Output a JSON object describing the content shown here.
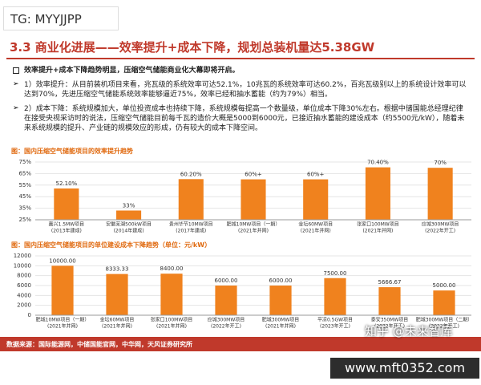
{
  "watermark": "TG: MYYJJPP",
  "header": {
    "title": "3.3 商业化进展——效率提升+成本下降，规划总装机量达5.38GW"
  },
  "bullets": [
    "效率提升+成本下降趋势明显，压缩空气储能商业化大幕即将开启。",
    "1）效率提升：从目前装机项目来看，兆瓦级的系统效率可达52.1%，10兆瓦的系统效率可达60.2%，百兆瓦级别以上的系统设计效率可以达到70%，先进压缩空气储能系统效率能够逼近75%，效率已经和抽水蓄能（约为79%）相当。",
    "2）成本下降：系统规模加大，单位投资成本也持续下降，系统规模每提高一个数量级，单位成本下降30%左右。根据中储国能总经理纪律在接受央视采访时的说法，压缩空气储能目前每千瓦的造价大概是5000到6000元，已接近抽水蓄能的建设成本（约5500元/kW），随着未来系统规模的提升、产业链的规模效应的形成，仍有较大的成本下降空间。"
  ],
  "chart_data": [
    {
      "type": "bar",
      "title": "图：国内压缩空气储能项目的效率提升趋势",
      "categories": [
        "嘉兴1.5MW项目",
        "安徽芜湖500kW项目",
        "贵州毕节10MW项目",
        "肥城10MW项目（一期）",
        "金坛60MW项目",
        "张家口100MW项目",
        "应城300MW项目"
      ],
      "category_notes": [
        "(2013年建成)",
        "(2014年建成)",
        "(2017年建成)",
        "(2021年并网)",
        "(2021年并网)",
        "(2021年并网)",
        "(2022年开工)"
      ],
      "values": [
        52.1,
        33,
        60.2,
        60,
        60,
        70.4,
        70
      ],
      "value_labels": [
        "52.10%",
        "33%",
        "60.20%",
        "60%+",
        "60%+",
        "70.40%",
        "70%"
      ],
      "color": "#f0821e",
      "ylim": [
        25,
        75
      ],
      "yticks": [
        {
          "value": 25,
          "label": "25%"
        },
        {
          "value": 35,
          "label": "35%"
        },
        {
          "value": 45,
          "label": "45%"
        },
        {
          "value": 55,
          "label": "55%"
        },
        {
          "value": 65,
          "label": "65%"
        },
        {
          "value": 75,
          "label": "75%"
        }
      ],
      "grid": true
    },
    {
      "type": "bar",
      "title": "图：国内压缩空气储能项目的单位建设成本下降趋势（单位：元/kW）",
      "categories": [
        "肥城10MW项目（一期）",
        "金坛60MW项目",
        "张家口100MW项目",
        "应城300MW项目",
        "肥城300MW项目",
        "平凉0.5GW项目",
        "泰安350MW项目",
        "肥城300MW项目（二期）"
      ],
      "category_notes": [
        "(2021年并网)",
        "(2021年并网)",
        "(2021年并网)",
        "(2022年开工)",
        "(2021年并网)",
        "(2023年开工)",
        "(2022年开工)",
        "(2022年开工)"
      ],
      "values": [
        10000,
        8333.33,
        8400,
        6000,
        6000,
        7500,
        5666.67,
        5000
      ],
      "value_labels": [
        "10000.00",
        "8333.33",
        "8400.00",
        "6000.00",
        "6000.00",
        "7500.00",
        "5666.67",
        "5000.00"
      ],
      "color": "#f0821e",
      "ylim": [
        0,
        12000
      ],
      "yticks": [
        0,
        2000,
        4000,
        6000,
        8000,
        10000,
        12000
      ],
      "grid": true
    }
  ],
  "source": "数据来源：国际能源网，中储国能官网，中华网，天风证券研究所",
  "overlay_watermark": "知乎 @未来智库",
  "site": "www.mft0352.com"
}
